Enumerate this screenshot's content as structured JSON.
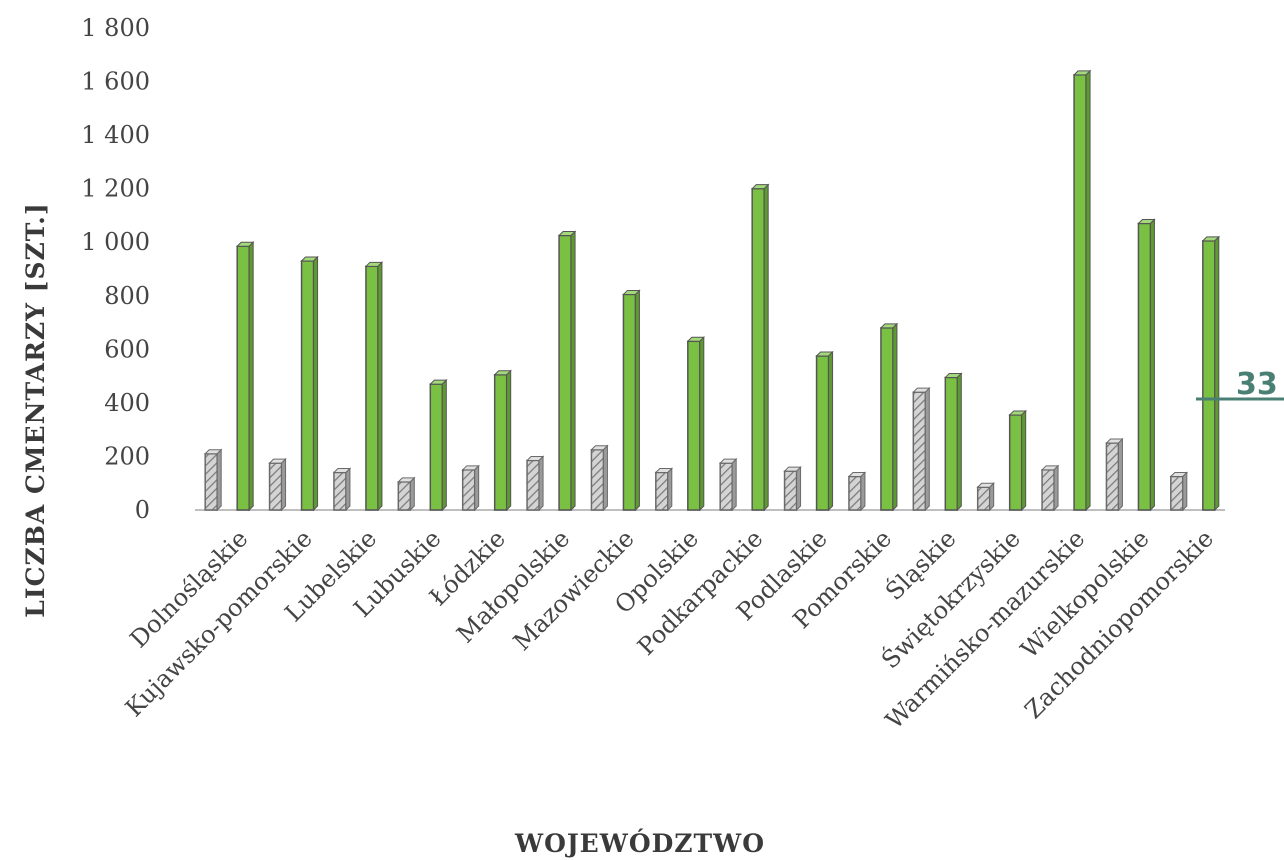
{
  "page_number": "33",
  "colors": {
    "series_green": "#7ac143",
    "series_green_edge": "#555555",
    "series_hatched_fill": "#d4d4d4",
    "series_hatched_stripe": "#777777",
    "axis": "#bfbfbf",
    "page_accent": "#4a7f74"
  },
  "chart_data": {
    "type": "bar",
    "style": "3d-clustered-column",
    "title": "",
    "xlabel": "WOJEWÓDZTWO",
    "ylabel": "LICZBA CMENTARZY [SZT.]",
    "ylim": [
      0,
      1800
    ],
    "yticks": [
      0,
      200,
      400,
      600,
      800,
      1000,
      1200,
      1400,
      1600,
      1800
    ],
    "ytick_labels": [
      "0",
      "200",
      "400",
      "600",
      "800",
      "1 000",
      "1 200",
      "1 400",
      "1 600",
      "1 800"
    ],
    "legend": "none",
    "categories": [
      "Dolnośląskie",
      "Kujawsko-pomorskie",
      "Lubelskie",
      "Lubuskie",
      "Łódzkie",
      "Małopolskie",
      "Mazowieckie",
      "Opolskie",
      "Podkarpackie",
      "Podlaskie",
      "Pomorskie",
      "Śląskie",
      "Świętokrzyskie",
      "Warmińsko-mazurskie",
      "Wielkopolskie",
      "Zachodniopomorskie"
    ],
    "series": [
      {
        "pattern": "hatched-grey",
        "values": [
          210,
          175,
          140,
          105,
          150,
          185,
          225,
          140,
          175,
          145,
          125,
          440,
          85,
          150,
          250,
          125
        ]
      },
      {
        "pattern": "solid-green",
        "values": [
          985,
          930,
          910,
          470,
          505,
          1025,
          805,
          630,
          1200,
          575,
          680,
          495,
          355,
          1625,
          1070,
          1005
        ]
      }
    ]
  }
}
